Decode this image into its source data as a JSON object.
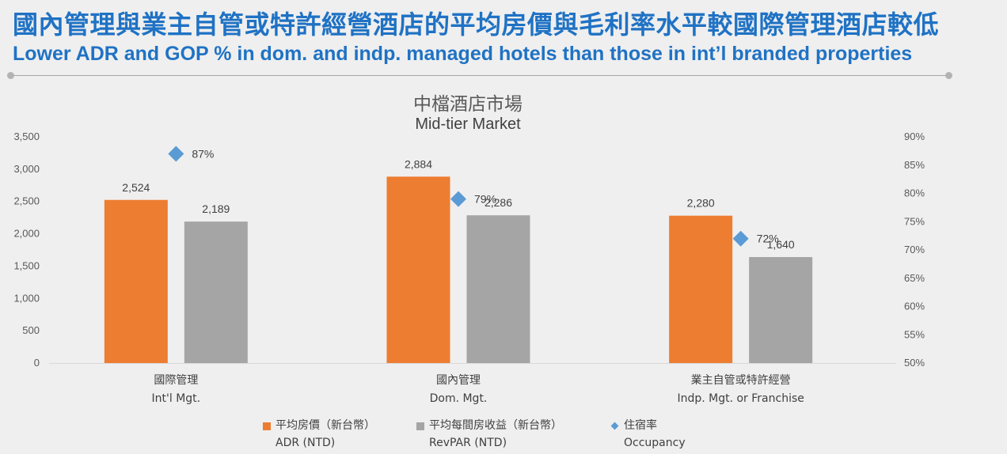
{
  "header": {
    "title_zh": "國內管理與業主自管或特許經營酒店的平均房價與毛利率水平較國際管理酒店較低",
    "title_en": "Lower ADR and GOP % in dom. and indp. managed hotels than those in int’l branded properties"
  },
  "colors": {
    "title": "#1f72c4",
    "adr": "#ed7d31",
    "revpar": "#a5a5a5",
    "occupancy": "#5b9bd5"
  },
  "chart_data": {
    "type": "bar",
    "title_zh": "中檔酒店市場",
    "title_en": "Mid-tier Market",
    "categories": [
      {
        "zh": "國際管理",
        "en": "Int'l Mgt."
      },
      {
        "zh": "國內管理",
        "en": "Dom. Mgt."
      },
      {
        "zh": "業主自管或特許經營",
        "en": "Indp. Mgt. or Franchise"
      }
    ],
    "series": [
      {
        "name_zh": "平均房價（新台幣）",
        "name_en": "ADR (NTD)",
        "axis": "left",
        "kind": "bar",
        "color": "#ed7d31",
        "values": [
          2524,
          2884,
          2280
        ],
        "labels": [
          "2,524",
          "2,884",
          "2,280"
        ]
      },
      {
        "name_zh": "平均每間房收益（新台幣）",
        "name_en": "RevPAR (NTD)",
        "axis": "left",
        "kind": "bar",
        "color": "#a5a5a5",
        "values": [
          2189,
          2286,
          1640
        ],
        "labels": [
          "2,189",
          "2,286",
          "1,640"
        ]
      },
      {
        "name_zh": "住宿率",
        "name_en": "Occupancy",
        "axis": "right",
        "kind": "marker",
        "color": "#5b9bd5",
        "values": [
          87,
          79,
          72
        ],
        "labels": [
          "87%",
          "79%",
          "72%"
        ]
      }
    ],
    "y_left": {
      "min": 0,
      "max": 3500,
      "ticks": [
        0,
        500,
        1000,
        1500,
        2000,
        2500,
        3000,
        3500
      ],
      "tick_labels": [
        "0",
        "500",
        "1,000",
        "1,500",
        "2,000",
        "2,500",
        "3,000",
        "3,500"
      ]
    },
    "y_right": {
      "min": 50,
      "max": 90,
      "ticks": [
        50,
        55,
        60,
        65,
        70,
        75,
        80,
        85,
        90
      ],
      "tick_labels": [
        "50%",
        "55%",
        "60%",
        "65%",
        "70%",
        "75%",
        "80%",
        "85%",
        "90%"
      ]
    },
    "grid": false,
    "legend_position": "bottom"
  }
}
